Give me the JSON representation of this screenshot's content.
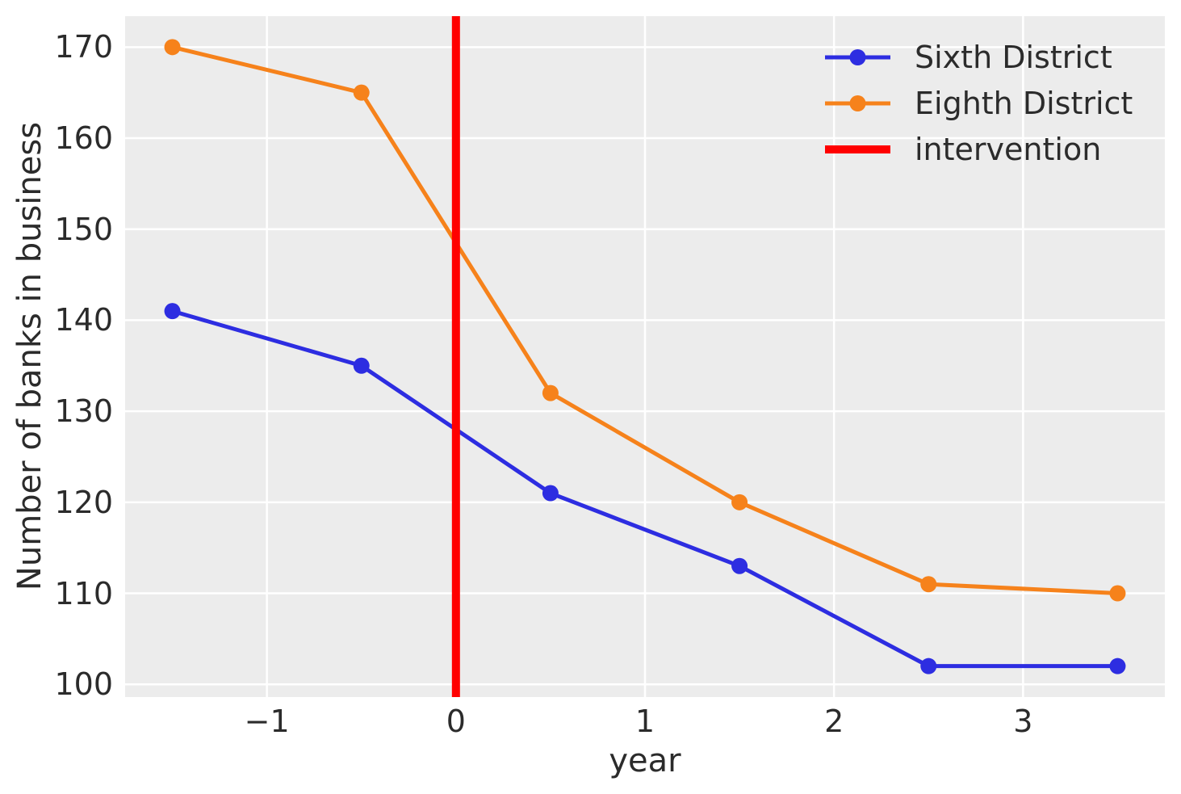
{
  "chart_data": {
    "type": "line",
    "x": [
      -1.5,
      -0.5,
      0.5,
      1.5,
      2.5,
      3.5
    ],
    "series": [
      {
        "name": "Sixth District",
        "color": "#2d2de1",
        "values": [
          141,
          135,
          121,
          113,
          102,
          102
        ]
      },
      {
        "name": "Eighth District",
        "color": "#f6821b",
        "values": [
          170,
          165,
          132,
          120,
          111,
          110
        ]
      }
    ],
    "intervention": {
      "label": "intervention",
      "x": 0,
      "color": "#ff0000"
    },
    "title": "",
    "xlabel": "year",
    "ylabel": "Number of banks in business",
    "xlim": [
      -1.75,
      3.75
    ],
    "ylim": [
      98.6,
      173.4
    ],
    "xticks": [
      -1,
      0,
      1,
      2,
      3
    ],
    "yticks": [
      100,
      110,
      120,
      130,
      140,
      150,
      160,
      170
    ],
    "grid": true,
    "legend_position": "upper right",
    "background_color": "#ececec",
    "grid_color": "#ffffff"
  }
}
